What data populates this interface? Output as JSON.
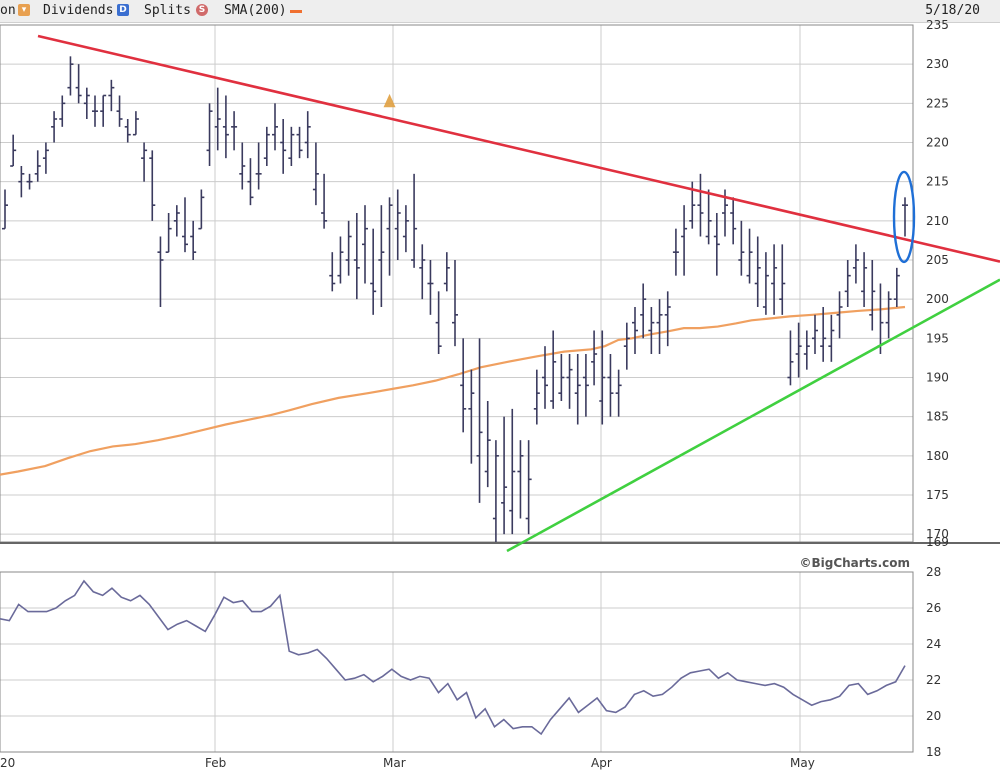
{
  "legend": {
    "volume_label": "on",
    "dividends_label": "Dividends",
    "dividends_icon": "D",
    "splits_label": "Splits",
    "splits_icon": "S",
    "sma_label": "SMA(200)",
    "date": "5/18/20"
  },
  "colors": {
    "bar": "#3a3a5e",
    "sma": "#f0a060",
    "resistance": "#e0303f",
    "support": "#40d040",
    "highlight": "#1f6fd6",
    "lower_line": "#6a6a9a",
    "grid": "#cccccc",
    "dividend_marker": "#e0a040"
  },
  "credit": "©BigCharts.com",
  "chart_data": [
    {
      "type": "bar",
      "subtype": "ohlc",
      "x_labels": [
        "20",
        "Feb",
        "Mar",
        "Apr",
        "May"
      ],
      "y_ticks": [
        235,
        230,
        225,
        220,
        215,
        210,
        205,
        200,
        195,
        190,
        185,
        180,
        175,
        170,
        169
      ],
      "ylim": [
        169,
        235
      ],
      "grid": true,
      "ohlc": [
        [
          209,
          214,
          209,
          212
        ],
        [
          217,
          221,
          217,
          219
        ],
        [
          215,
          217,
          213,
          216
        ],
        [
          215,
          216,
          214,
          215
        ],
        [
          216,
          219,
          215,
          217
        ],
        [
          218,
          220,
          216,
          219
        ],
        [
          222,
          224,
          220,
          223
        ],
        [
          223,
          226,
          222,
          225
        ],
        [
          227,
          231,
          226,
          230
        ],
        [
          227,
          230,
          225,
          226
        ],
        [
          225,
          227,
          223,
          226
        ],
        [
          224,
          226,
          222,
          224
        ],
        [
          224,
          226,
          222,
          226
        ],
        [
          226,
          228,
          224,
          227
        ],
        [
          224,
          226,
          222,
          223
        ],
        [
          222,
          223,
          220,
          221
        ],
        [
          221,
          224,
          221,
          223
        ],
        [
          218,
          220,
          215,
          219
        ],
        [
          218,
          219,
          210,
          212
        ],
        [
          206,
          208,
          199,
          205
        ],
        [
          206,
          211,
          206,
          209
        ],
        [
          210,
          212,
          208,
          211
        ],
        [
          208,
          213,
          206,
          207
        ],
        [
          208,
          210,
          205,
          206
        ],
        [
          209,
          214,
          209,
          213
        ],
        [
          219,
          225,
          217,
          224
        ],
        [
          222,
          227,
          219,
          223
        ],
        [
          222,
          226,
          218,
          221
        ],
        [
          222,
          224,
          219,
          222
        ],
        [
          216,
          220,
          214,
          217
        ],
        [
          215,
          218,
          212,
          213
        ],
        [
          216,
          220,
          214,
          216
        ],
        [
          218,
          222,
          217,
          221
        ],
        [
          221,
          225,
          219,
          222
        ],
        [
          220,
          223,
          216,
          219
        ],
        [
          218,
          222,
          217,
          221
        ],
        [
          221,
          222,
          218,
          219
        ],
        [
          220,
          224,
          218,
          222
        ],
        [
          214,
          220,
          212,
          216
        ],
        [
          211,
          216,
          209,
          210
        ],
        [
          203,
          206,
          201,
          202
        ],
        [
          203,
          208,
          202,
          206
        ],
        [
          205,
          210,
          203,
          208
        ],
        [
          205,
          211,
          200,
          204
        ],
        [
          207,
          212,
          202,
          209
        ],
        [
          202,
          209,
          198,
          201
        ],
        [
          205,
          212,
          199,
          206
        ],
        [
          209,
          213,
          203,
          212
        ],
        [
          209,
          214,
          205,
          211
        ],
        [
          208,
          212,
          206,
          210
        ],
        [
          205,
          216,
          204,
          209
        ],
        [
          204,
          207,
          200,
          205
        ],
        [
          202,
          205,
          198,
          202
        ],
        [
          197,
          201,
          193,
          194
        ],
        [
          202,
          206,
          201,
          204
        ],
        [
          197,
          205,
          194,
          198
        ],
        [
          189,
          195,
          183,
          186
        ],
        [
          186,
          191,
          179,
          188
        ],
        [
          180,
          195,
          174,
          183
        ],
        [
          178,
          187,
          176,
          182
        ],
        [
          172,
          182,
          169,
          180
        ],
        [
          174,
          185,
          170,
          176
        ],
        [
          173,
          186,
          170,
          178
        ],
        [
          178,
          182,
          172,
          180
        ],
        [
          172,
          182,
          170,
          177
        ],
        [
          186,
          191,
          184,
          188
        ],
        [
          190,
          194,
          186,
          189
        ],
        [
          187,
          196,
          186,
          192
        ],
        [
          188,
          193,
          187,
          190
        ],
        [
          190,
          193,
          186,
          191
        ],
        [
          188,
          193,
          184,
          189
        ],
        [
          190,
          193,
          185,
          189
        ],
        [
          192,
          196,
          189,
          193
        ],
        [
          187,
          196,
          184,
          190
        ],
        [
          190,
          193,
          185,
          188
        ],
        [
          188,
          191,
          185,
          189
        ],
        [
          194,
          197,
          191,
          195
        ],
        [
          197,
          199,
          193,
          196
        ],
        [
          198,
          202,
          195,
          200
        ],
        [
          196,
          199,
          193,
          197
        ],
        [
          197,
          200,
          193,
          198
        ],
        [
          198,
          201,
          194,
          199
        ],
        [
          206,
          209,
          203,
          206
        ],
        [
          208,
          212,
          203,
          209
        ],
        [
          210,
          215,
          209,
          212
        ],
        [
          212,
          216,
          208,
          211
        ],
        [
          208,
          214,
          207,
          210
        ],
        [
          208,
          211,
          203,
          207
        ],
        [
          211,
          214,
          208,
          212
        ],
        [
          211,
          213,
          207,
          209
        ],
        [
          205,
          210,
          203,
          206
        ],
        [
          203,
          209,
          202,
          206
        ],
        [
          202,
          208,
          199,
          204
        ],
        [
          199,
          206,
          198,
          203
        ],
        [
          202,
          207,
          198,
          204
        ],
        [
          200,
          207,
          198,
          202
        ],
        [
          190,
          196,
          189,
          192
        ],
        [
          193,
          197,
          190,
          194
        ],
        [
          193,
          196,
          191,
          194
        ],
        [
          195,
          198,
          193,
          196
        ],
        [
          194,
          199,
          192,
          195
        ],
        [
          194,
          198,
          192,
          196
        ],
        [
          198,
          201,
          195,
          199
        ],
        [
          201,
          205,
          199,
          203
        ],
        [
          204,
          207,
          202,
          205
        ],
        [
          201,
          206,
          199,
          204
        ],
        [
          198,
          205,
          196,
          201
        ],
        [
          194,
          202,
          193,
          197
        ],
        [
          197,
          201,
          195,
          200
        ],
        [
          200,
          204,
          199,
          203
        ],
        [
          212,
          213,
          208,
          212
        ]
      ],
      "sma200": [
        [
          0,
          177.6
        ],
        [
          8,
          178.0
        ],
        [
          20,
          178.7
        ],
        [
          30,
          179.7
        ],
        [
          40,
          180.6
        ],
        [
          50,
          181.2
        ],
        [
          60,
          181.5
        ],
        [
          70,
          182.0
        ],
        [
          80,
          182.6
        ],
        [
          90,
          183.3
        ],
        [
          100,
          184.0
        ],
        [
          110,
          184.6
        ],
        [
          120,
          185.2
        ],
        [
          128,
          185.8
        ],
        [
          138,
          186.6
        ],
        [
          150,
          187.4
        ],
        [
          163,
          188.0
        ],
        [
          173,
          188.5
        ],
        [
          183,
          189.0
        ],
        [
          193,
          189.6
        ],
        [
          203,
          190.4
        ],
        [
          213,
          191.3
        ],
        [
          225,
          192.0
        ],
        [
          238,
          192.7
        ],
        [
          250,
          193.3
        ],
        [
          262,
          193.6
        ],
        [
          268,
          194.0
        ],
        [
          274,
          194.8
        ],
        [
          280,
          195.0
        ],
        [
          288,
          195.5
        ],
        [
          296,
          195.9
        ],
        [
          303,
          196.3
        ],
        [
          310,
          196.3
        ],
        [
          318,
          196.5
        ],
        [
          326,
          196.9
        ],
        [
          333,
          197.3
        ],
        [
          340,
          197.5
        ],
        [
          350,
          197.8
        ],
        [
          360,
          198.0
        ],
        [
          372,
          198.3
        ],
        [
          380,
          198.5
        ],
        [
          390,
          198.7
        ],
        [
          401,
          199.0
        ]
      ],
      "trendlines": {
        "resistance": [
          [
            0,
            233
          ],
          [
            1000,
            205
          ]
        ],
        "support": [
          [
            0,
            169
          ],
          [
            1000,
            202
          ]
        ]
      },
      "highlight_ellipse": "last bar",
      "dividend_marker_bar": 47
    },
    {
      "type": "line",
      "x_labels": [
        "20",
        "Feb",
        "Mar",
        "Apr",
        "May"
      ],
      "y_ticks": [
        28,
        26,
        24,
        22,
        20,
        18
      ],
      "ylim": [
        18,
        28
      ],
      "grid": true,
      "values": [
        25.4,
        25.3,
        26.2,
        25.8,
        25.8,
        25.8,
        26.0,
        26.4,
        26.7,
        27.5,
        26.9,
        26.7,
        27.1,
        26.6,
        26.4,
        26.7,
        26.2,
        25.5,
        24.8,
        25.1,
        25.3,
        25.0,
        24.7,
        25.6,
        26.6,
        26.3,
        26.4,
        25.8,
        25.8,
        26.1,
        26.7,
        23.6,
        23.4,
        23.5,
        23.7,
        23.2,
        22.6,
        22.0,
        22.1,
        22.3,
        21.9,
        22.2,
        22.6,
        22.2,
        22.0,
        22.2,
        22.1,
        21.3,
        21.8,
        20.9,
        21.3,
        19.9,
        20.4,
        19.4,
        19.8,
        19.3,
        19.4,
        19.4,
        19.0,
        19.8,
        20.4,
        21.0,
        20.2,
        20.6,
        21.0,
        20.3,
        20.2,
        20.5,
        21.2,
        21.4,
        21.1,
        21.2,
        21.6,
        22.1,
        22.4,
        22.5,
        22.6,
        22.1,
        22.4,
        22.0,
        21.9,
        21.8,
        21.7,
        21.8,
        21.6,
        21.2,
        20.9,
        20.6,
        20.8,
        20.9,
        21.1,
        21.7,
        21.8,
        21.2,
        21.4,
        21.7,
        21.9,
        22.8
      ]
    }
  ]
}
